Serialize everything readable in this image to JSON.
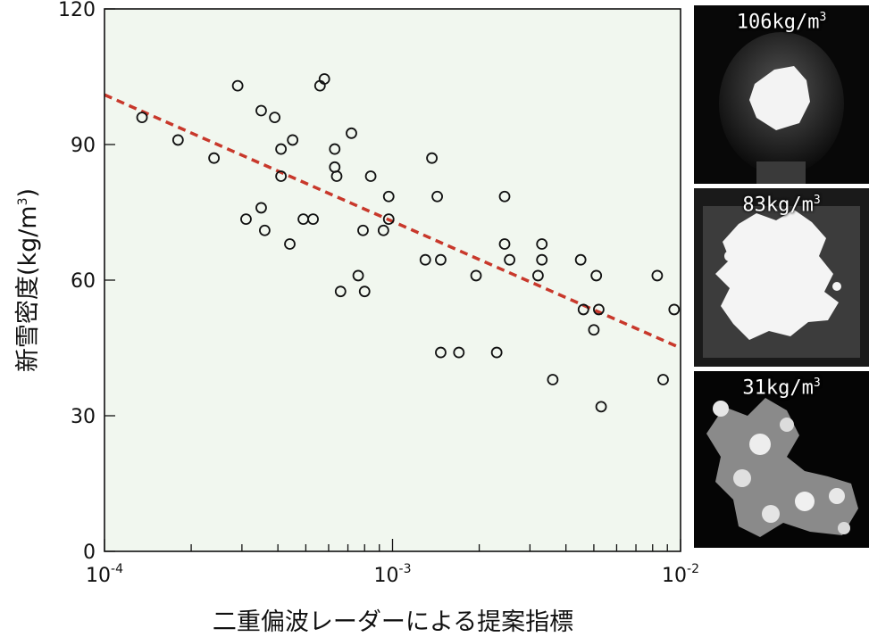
{
  "chart_data": {
    "type": "scatter",
    "title": "",
    "xlabel": "二重偏波レーダーによる提案指標",
    "ylabel": "新雪密度(kg/m³)",
    "ylabel_main": "新雪密度(kg/m",
    "ylabel_sup": "3",
    "ylabel_end": ")",
    "xscale": "log",
    "xlim": [
      0.0001,
      0.01
    ],
    "ylim": [
      0,
      120
    ],
    "yticks": [
      0,
      30,
      60,
      90,
      120
    ],
    "xtick_labels": [
      {
        "value": 0.0001,
        "base": "10",
        "exp": "-4"
      },
      {
        "value": 0.001,
        "base": "10",
        "exp": "-3"
      },
      {
        "value": 0.01,
        "base": "10",
        "exp": "-2"
      }
    ],
    "plot_background": "#f1f7ef",
    "trendline": {
      "color": "#c8382b",
      "style": "dashed",
      "x": [
        0.0001,
        0.01
      ],
      "y": [
        101,
        45
      ]
    },
    "points": [
      {
        "x": 0.000135,
        "y": 96
      },
      {
        "x": 0.00018,
        "y": 91
      },
      {
        "x": 0.00024,
        "y": 87
      },
      {
        "x": 0.00029,
        "y": 103
      },
      {
        "x": 0.00031,
        "y": 73.5
      },
      {
        "x": 0.00035,
        "y": 97.5
      },
      {
        "x": 0.00035,
        "y": 76
      },
      {
        "x": 0.00036,
        "y": 71
      },
      {
        "x": 0.00039,
        "y": 96
      },
      {
        "x": 0.00041,
        "y": 89
      },
      {
        "x": 0.00041,
        "y": 83
      },
      {
        "x": 0.00044,
        "y": 68
      },
      {
        "x": 0.00045,
        "y": 91
      },
      {
        "x": 0.00049,
        "y": 73.5
      },
      {
        "x": 0.00053,
        "y": 73.5
      },
      {
        "x": 0.00056,
        "y": 103
      },
      {
        "x": 0.00058,
        "y": 104.5
      },
      {
        "x": 0.00063,
        "y": 89
      },
      {
        "x": 0.00063,
        "y": 85
      },
      {
        "x": 0.00064,
        "y": 83
      },
      {
        "x": 0.00066,
        "y": 57.5
      },
      {
        "x": 0.00072,
        "y": 92.5
      },
      {
        "x": 0.00076,
        "y": 61
      },
      {
        "x": 0.00079,
        "y": 71
      },
      {
        "x": 0.0008,
        "y": 57.5
      },
      {
        "x": 0.00084,
        "y": 83
      },
      {
        "x": 0.00093,
        "y": 71
      },
      {
        "x": 0.00097,
        "y": 78.5
      },
      {
        "x": 0.00097,
        "y": 73.5
      },
      {
        "x": 0.0013,
        "y": 64.5
      },
      {
        "x": 0.00137,
        "y": 87
      },
      {
        "x": 0.00143,
        "y": 78.5
      },
      {
        "x": 0.00147,
        "y": 64.5
      },
      {
        "x": 0.00147,
        "y": 44
      },
      {
        "x": 0.0017,
        "y": 44
      },
      {
        "x": 0.00195,
        "y": 61
      },
      {
        "x": 0.0023,
        "y": 44
      },
      {
        "x": 0.00245,
        "y": 78.5
      },
      {
        "x": 0.00245,
        "y": 68
      },
      {
        "x": 0.00255,
        "y": 64.5
      },
      {
        "x": 0.0032,
        "y": 61
      },
      {
        "x": 0.0033,
        "y": 68
      },
      {
        "x": 0.0033,
        "y": 64.5
      },
      {
        "x": 0.0036,
        "y": 38
      },
      {
        "x": 0.0045,
        "y": 64.5
      },
      {
        "x": 0.0046,
        "y": 53.5
      },
      {
        "x": 0.005,
        "y": 49
      },
      {
        "x": 0.0051,
        "y": 61
      },
      {
        "x": 0.0052,
        "y": 53.5
      },
      {
        "x": 0.0053,
        "y": 32
      },
      {
        "x": 0.0083,
        "y": 61
      },
      {
        "x": 0.0087,
        "y": 38
      },
      {
        "x": 0.0095,
        "y": 53.5
      }
    ]
  },
  "panels": [
    {
      "label": "106kg/m",
      "sup": "3"
    },
    {
      "label": "83kg/m",
      "sup": "3"
    },
    {
      "label": "31kg/m",
      "sup": "3"
    }
  ]
}
